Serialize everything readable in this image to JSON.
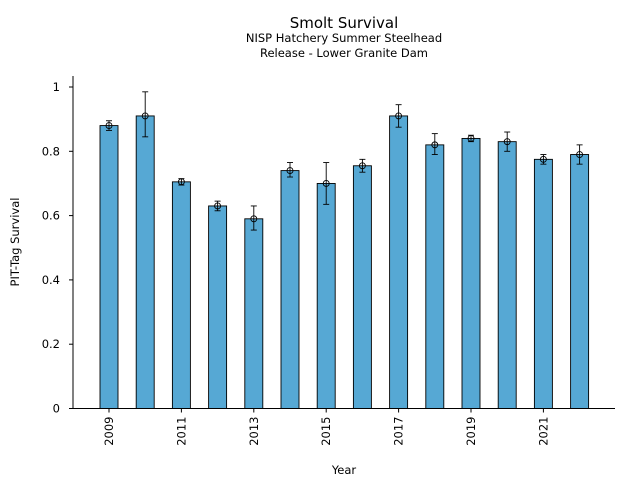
{
  "chart_data": {
    "type": "bar",
    "title": "Smolt Survival",
    "subtitle_lines": [
      "NISP Hatchery Summer Steelhead",
      "Release - Lower Granite Dam"
    ],
    "xlabel": "Year",
    "ylabel": "PIT-Tag Survival",
    "ylim": [
      0,
      1.03
    ],
    "yticks": [
      0,
      0.2,
      0.4,
      0.6,
      0.8,
      1
    ],
    "ytick_labels": [
      "0",
      "0.2",
      "0.4",
      "0.6",
      "0.8",
      "1"
    ],
    "categories": [
      2009,
      2010,
      2011,
      2012,
      2013,
      2014,
      2015,
      2016,
      2017,
      2018,
      2019,
      2020,
      2021,
      2022
    ],
    "xtick_labels": [
      "2009",
      "2011",
      "2013",
      "2015",
      "2017",
      "2019",
      "2021"
    ],
    "xtick_values": [
      2009,
      2011,
      2013,
      2015,
      2017,
      2019,
      2021
    ],
    "values": [
      0.88,
      0.91,
      0.705,
      0.63,
      0.59,
      0.74,
      0.7,
      0.755,
      0.91,
      0.82,
      0.84,
      0.83,
      0.775,
      0.79
    ],
    "error_low": [
      0.865,
      0.845,
      0.695,
      0.615,
      0.555,
      0.72,
      0.635,
      0.735,
      0.875,
      0.79,
      0.83,
      0.8,
      0.76,
      0.76
    ],
    "error_high": [
      0.895,
      0.985,
      0.715,
      0.645,
      0.63,
      0.765,
      0.765,
      0.775,
      0.945,
      0.855,
      0.85,
      0.86,
      0.79,
      0.82
    ],
    "bar_color": "#56a8d4",
    "grid": false
  }
}
